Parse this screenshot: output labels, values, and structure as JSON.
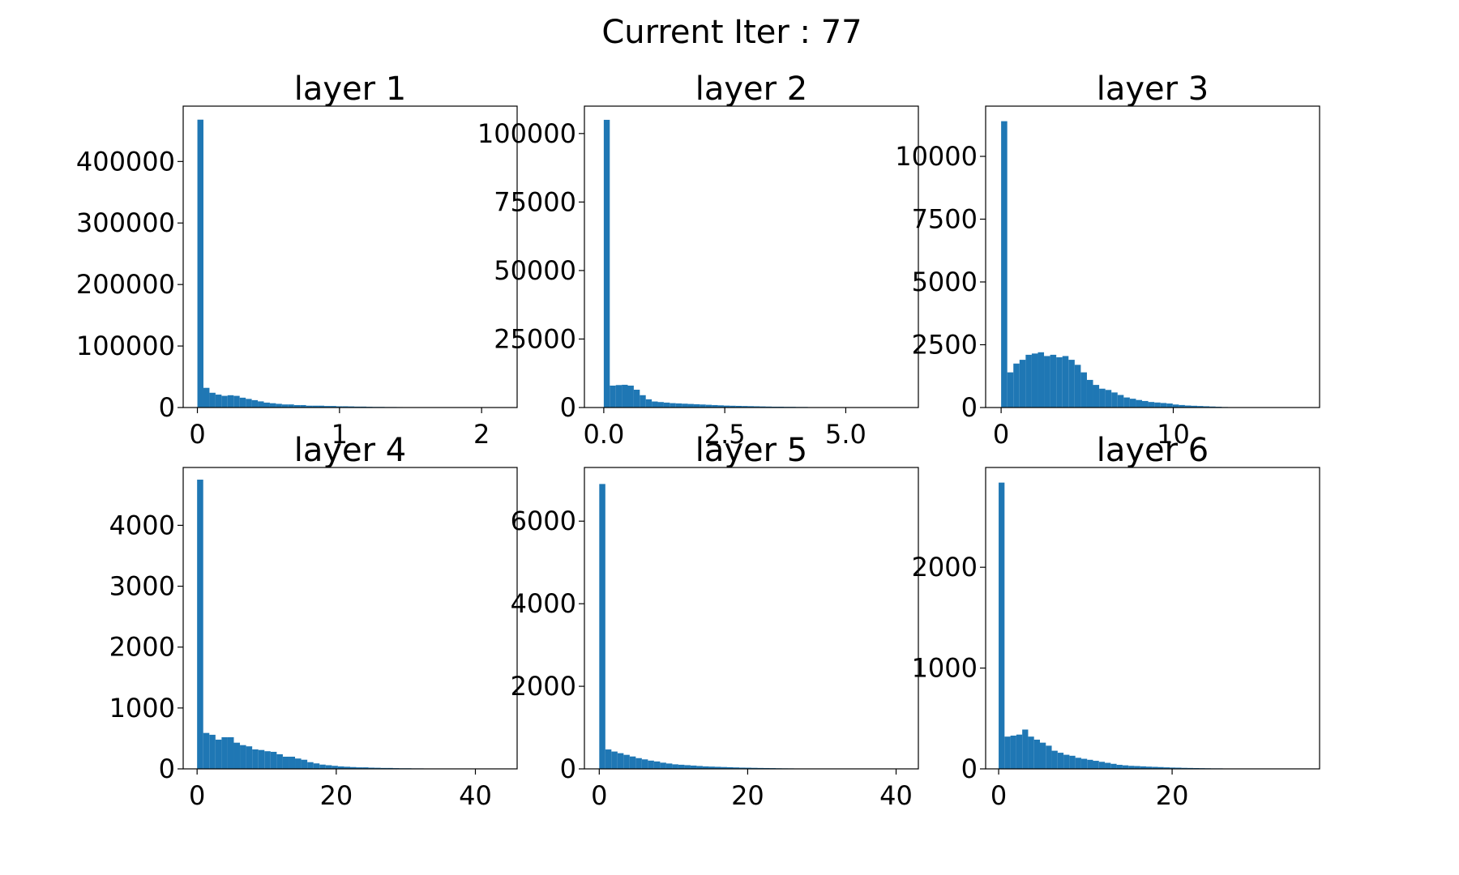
{
  "suptitle": "Current Iter : 77",
  "bar_color": "#1f77b4",
  "chart_data": [
    {
      "type": "bar",
      "title": "layer 1",
      "xlim": [
        -0.1,
        2.25
      ],
      "ylim": [
        0,
        490000
      ],
      "xticks": [
        0,
        1,
        2
      ],
      "xtick_labels": [
        "0",
        "1",
        "2"
      ],
      "yticks": [
        0,
        100000,
        200000,
        300000,
        400000
      ],
      "ytick_labels": [
        "0",
        "100000",
        "200000",
        "300000",
        "400000"
      ],
      "bin_start": 0,
      "bin_width": 0.0425,
      "values": [
        468000,
        32000,
        24000,
        21000,
        19000,
        20000,
        19000,
        16000,
        14000,
        12000,
        10000,
        8000,
        7000,
        6000,
        5000,
        5000,
        4000,
        4000,
        3000,
        3000,
        3000,
        2500,
        2500,
        2000,
        2000,
        1800,
        1500,
        1500,
        1200,
        1000,
        1000,
        800,
        800,
        700,
        600,
        500,
        500,
        400,
        400,
        300,
        300,
        300,
        300,
        300,
        300,
        300,
        300,
        300,
        300,
        300
      ]
    },
    {
      "type": "bar",
      "title": "layer 2",
      "xlim": [
        -0.4,
        6.5
      ],
      "ylim": [
        0,
        110000
      ],
      "xticks": [
        0,
        2.5,
        5
      ],
      "xtick_labels": [
        "0.0",
        "2.5",
        "5.0"
      ],
      "yticks": [
        0,
        25000,
        50000,
        75000,
        100000
      ],
      "ytick_labels": [
        "0",
        "25000",
        "50000",
        "75000",
        "100000"
      ],
      "bin_start": 0,
      "bin_width": 0.124,
      "values": [
        105000,
        8000,
        8200,
        8300,
        8000,
        6500,
        4500,
        3000,
        2200,
        2000,
        1800,
        1600,
        1500,
        1400,
        1300,
        1200,
        1100,
        1000,
        900,
        800,
        700,
        650,
        600,
        550,
        500,
        450,
        400,
        350,
        300,
        300,
        250,
        250,
        200,
        200,
        150,
        150,
        120,
        120,
        100,
        100,
        80,
        80,
        60,
        60,
        50,
        50,
        40,
        40,
        30,
        30
      ]
    },
    {
      "type": "bar",
      "title": "layer 3",
      "xlim": [
        -0.9,
        18.5
      ],
      "ylim": [
        0,
        12000
      ],
      "xticks": [
        0,
        10
      ],
      "xtick_labels": [
        "0",
        "10"
      ],
      "yticks": [
        0,
        2500,
        5000,
        7500,
        10000
      ],
      "ytick_labels": [
        "0",
        "2500",
        "5000",
        "7500",
        "10000"
      ],
      "bin_start": 0,
      "bin_width": 0.356,
      "values": [
        11400,
        1400,
        1750,
        1900,
        2100,
        2150,
        2200,
        2050,
        2100,
        2000,
        2050,
        1900,
        1700,
        1400,
        1100,
        900,
        750,
        700,
        600,
        500,
        400,
        350,
        300,
        260,
        220,
        200,
        180,
        160,
        120,
        100,
        80,
        70,
        60,
        50,
        40,
        30,
        20,
        15,
        10,
        8,
        5,
        5,
        3,
        3,
        2,
        2,
        1,
        1,
        1,
        1
      ]
    },
    {
      "type": "bar",
      "title": "layer 4",
      "xlim": [
        -2,
        46
      ],
      "ylim": [
        0,
        4950
      ],
      "xticks": [
        0,
        20,
        40
      ],
      "xtick_labels": [
        "0",
        "20",
        "40"
      ],
      "yticks": [
        0,
        1000,
        2000,
        3000,
        4000
      ],
      "ytick_labels": [
        "0",
        "1000",
        "2000",
        "3000",
        "4000"
      ],
      "bin_start": 0,
      "bin_width": 0.88,
      "values": [
        4750,
        590,
        560,
        480,
        520,
        520,
        430,
        390,
        370,
        320,
        310,
        290,
        280,
        240,
        200,
        200,
        170,
        150,
        110,
        90,
        70,
        60,
        50,
        40,
        35,
        30,
        25,
        25,
        20,
        18,
        15,
        15,
        12,
        10,
        10,
        8,
        8,
        5,
        5,
        5,
        3,
        3,
        3,
        2,
        2,
        2,
        1,
        1,
        1,
        1
      ]
    },
    {
      "type": "bar",
      "title": "layer 5",
      "xlim": [
        -2,
        43
      ],
      "ylim": [
        0,
        7300
      ],
      "xticks": [
        0,
        20,
        40
      ],
      "xtick_labels": [
        "0",
        "20",
        "40"
      ],
      "yticks": [
        0,
        2000,
        4000,
        6000
      ],
      "ytick_labels": [
        "0",
        "2000",
        "4000",
        "6000"
      ],
      "bin_start": 0,
      "bin_width": 0.82,
      "values": [
        6900,
        470,
        420,
        380,
        340,
        300,
        260,
        230,
        200,
        180,
        150,
        130,
        110,
        100,
        90,
        80,
        70,
        60,
        55,
        50,
        45,
        40,
        35,
        30,
        28,
        25,
        22,
        20,
        18,
        15,
        13,
        12,
        10,
        9,
        8,
        7,
        6,
        5,
        5,
        4,
        3,
        3,
        3,
        2,
        2,
        2,
        1,
        1,
        1,
        1
      ]
    },
    {
      "type": "bar",
      "title": "layer 6",
      "xlim": [
        -1.5,
        37
      ],
      "ylim": [
        0,
        2990
      ],
      "xticks": [
        0,
        20
      ],
      "xtick_labels": [
        "0",
        "20"
      ],
      "yticks": [
        0,
        1000,
        2000
      ],
      "ytick_labels": [
        "0",
        "1000",
        "2000"
      ],
      "bin_start": 0,
      "bin_width": 0.68,
      "values": [
        2840,
        320,
        330,
        340,
        390,
        320,
        290,
        260,
        230,
        180,
        160,
        140,
        130,
        110,
        100,
        90,
        80,
        70,
        60,
        50,
        40,
        35,
        30,
        28,
        25,
        22,
        20,
        18,
        15,
        13,
        12,
        10,
        9,
        8,
        7,
        6,
        5,
        5,
        4,
        3,
        3,
        3,
        2,
        2,
        2,
        1,
        1,
        1,
        1,
        1
      ]
    }
  ]
}
